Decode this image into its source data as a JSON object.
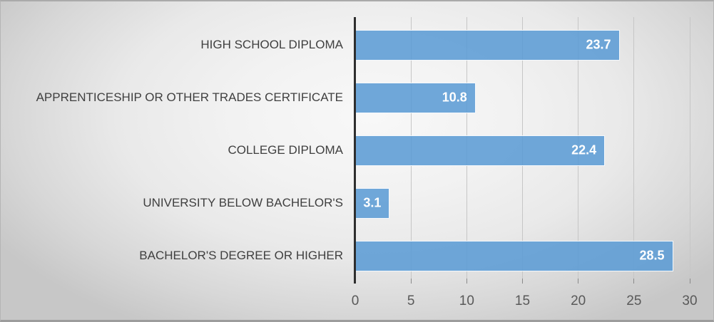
{
  "chart_data": {
    "type": "bar",
    "orientation": "horizontal",
    "title": "",
    "xlabel": "",
    "ylabel": "",
    "categories": [
      "HIGH SCHOOL DIPLOMA",
      "APPRENTICESHIP OR OTHER TRADES CERTIFICATE",
      "COLLEGE DIPLOMA",
      "UNIVERSITY BELOW BACHELOR'S",
      "BACHELOR'S DEGREE OR HIGHER"
    ],
    "values": [
      23.7,
      10.8,
      22.4,
      3.1,
      28.5
    ],
    "x_ticks": [
      0,
      5,
      10,
      15,
      20,
      25,
      30
    ],
    "xlim": [
      0,
      30
    ],
    "grid": true,
    "legend": false,
    "bar_color": "#5B9BD5",
    "bar_border_color": "#FFFFFF",
    "data_label_color": "#FFFFFF",
    "category_label_color": "#3F3F3F",
    "tick_label_color": "#595959",
    "axis_line_color": "#2E2E2E",
    "gridline_color": "#C6C6C6"
  }
}
